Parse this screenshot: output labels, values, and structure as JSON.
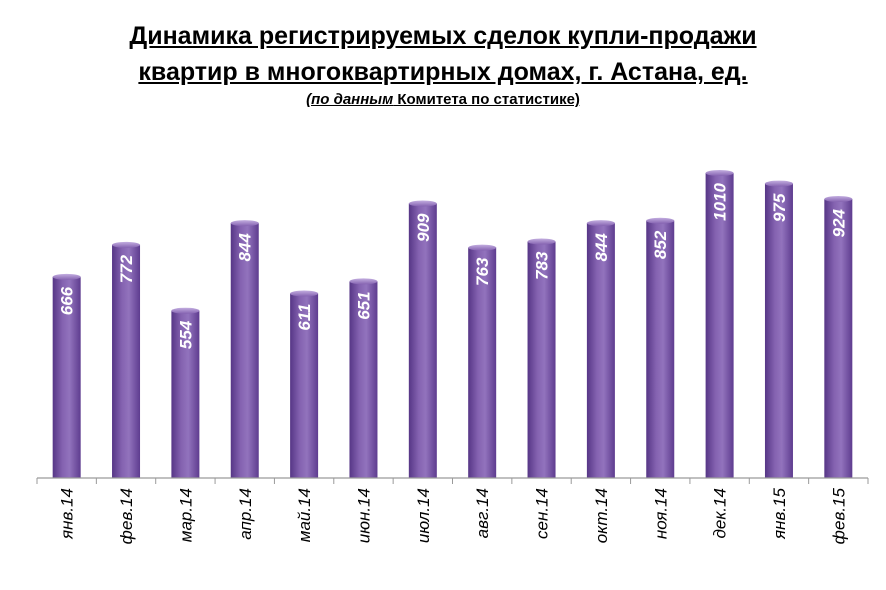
{
  "chart_data": {
    "type": "bar",
    "title_line1": "Динамика регистрируемых сделок купли-продажи",
    "title_line2": "квартир в многоквартирных домах, г. Астана, ед.",
    "subtitle_italic": "(по данным",
    "subtitle_rest": " Комитета по статистике)",
    "categories": [
      "янв.14",
      "фев.14",
      "мар.14",
      "апр.14",
      "май.14",
      "июн.14",
      "июл.14",
      "авг.14",
      "сен.14",
      "окт.14",
      "ноя.14",
      "дек.14",
      "янв.15",
      "фев.15"
    ],
    "values": [
      666,
      772,
      554,
      844,
      611,
      651,
      909,
      763,
      783,
      844,
      852,
      1010,
      975,
      924
    ],
    "value_labels": [
      "666",
      "772",
      "554",
      "844",
      "611",
      "651",
      "909",
      "763",
      "783",
      "844",
      "852",
      "1010",
      "975",
      "924"
    ],
    "ylim": [
      0,
      1010
    ],
    "grid": false,
    "bar_color": "#7e5ba8",
    "bar_color_dark": "#553685",
    "bar_color_light": "#9a7cc4"
  }
}
